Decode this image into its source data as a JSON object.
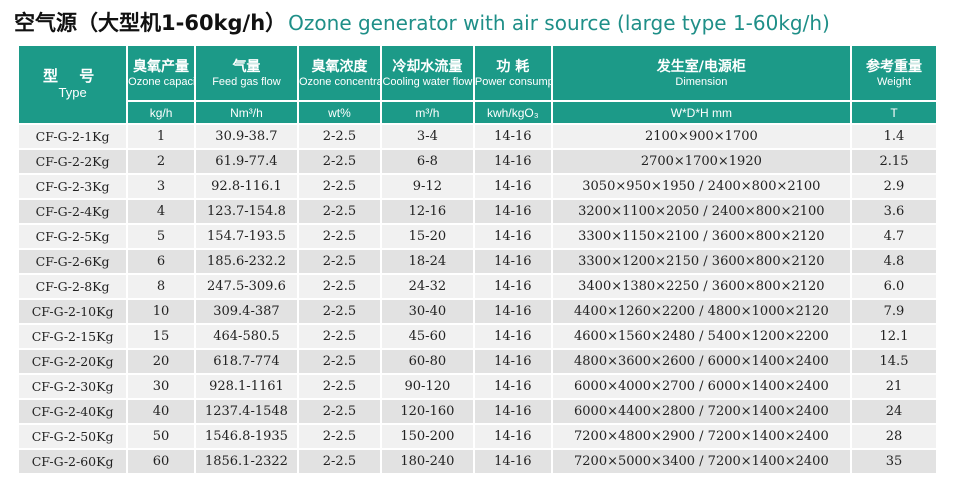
{
  "title": {
    "zh": "空气源（大型机1-60kg/h）",
    "en": "Ozone generator with air source (large type 1-60kg/h)"
  },
  "headers": {
    "model": {
      "zh": "型 号",
      "en": "Type"
    },
    "capacity": {
      "zh": "臭氧产量",
      "en": "Ozone capacity",
      "unit": "kg/h"
    },
    "feed_gas": {
      "zh": "气量",
      "en": "Feed gas flow",
      "unit": "Nm³/h"
    },
    "concentration": {
      "zh": "臭氧浓度",
      "en": "Ozone concentration",
      "unit": "wt%"
    },
    "cooling": {
      "zh": "冷却水流量",
      "en": "Cooling water flow",
      "unit": "m³/h"
    },
    "power": {
      "zh": "功 耗",
      "en": "Power consumption",
      "unit": "kwh/kgO₃"
    },
    "dimension": {
      "zh": "发生室/电源柜",
      "en": "Dimension",
      "unit": "W*D*H mm"
    },
    "weight": {
      "zh": "参考重量",
      "en": "Weight",
      "unit": "T"
    }
  },
  "rows": [
    {
      "model": "CF-G-2-1Kg",
      "capacity": "1",
      "feed_gas": "30.9-38.7",
      "concentration": "2-2.5",
      "cooling": "3-4",
      "power": "14-16",
      "dimension": "2100×900×1700",
      "weight": "1.4"
    },
    {
      "model": "CF-G-2-2Kg",
      "capacity": "2",
      "feed_gas": "61.9-77.4",
      "concentration": "2-2.5",
      "cooling": "6-8",
      "power": "14-16",
      "dimension": "2700×1700×1920",
      "weight": "2.15"
    },
    {
      "model": "CF-G-2-3Kg",
      "capacity": "3",
      "feed_gas": "92.8-116.1",
      "concentration": "2-2.5",
      "cooling": "9-12",
      "power": "14-16",
      "dimension": "3050×950×1950 / 2400×800×2100",
      "weight": "2.9"
    },
    {
      "model": "CF-G-2-4Kg",
      "capacity": "4",
      "feed_gas": "123.7-154.8",
      "concentration": "2-2.5",
      "cooling": "12-16",
      "power": "14-16",
      "dimension": "3200×1100×2050 / 2400×800×2100",
      "weight": "3.6"
    },
    {
      "model": "CF-G-2-5Kg",
      "capacity": "5",
      "feed_gas": "154.7-193.5",
      "concentration": "2-2.5",
      "cooling": "15-20",
      "power": "14-16",
      "dimension": "3300×1150×2100 / 3600×800×2120",
      "weight": "4.7"
    },
    {
      "model": "CF-G-2-6Kg",
      "capacity": "6",
      "feed_gas": "185.6-232.2",
      "concentration": "2-2.5",
      "cooling": "18-24",
      "power": "14-16",
      "dimension": "3300×1200×2150 / 3600×800×2120",
      "weight": "4.8"
    },
    {
      "model": "CF-G-2-8Kg",
      "capacity": "8",
      "feed_gas": "247.5-309.6",
      "concentration": "2-2.5",
      "cooling": "24-32",
      "power": "14-16",
      "dimension": "3400×1380×2250 / 3600×800×2120",
      "weight": "6.0"
    },
    {
      "model": "CF-G-2-10Kg",
      "capacity": "10",
      "feed_gas": "309.4-387",
      "concentration": "2-2.5",
      "cooling": "30-40",
      "power": "14-16",
      "dimension": "4400×1260×2200 / 4800×1000×2120",
      "weight": "7.9"
    },
    {
      "model": "CF-G-2-15Kg",
      "capacity": "15",
      "feed_gas": "464-580.5",
      "concentration": "2-2.5",
      "cooling": "45-60",
      "power": "14-16",
      "dimension": "4600×1560×2480 / 5400×1200×2200",
      "weight": "12.1"
    },
    {
      "model": "CF-G-2-20Kg",
      "capacity": "20",
      "feed_gas": "618.7-774",
      "concentration": "2-2.5",
      "cooling": "60-80",
      "power": "14-16",
      "dimension": "4800×3600×2600 / 6000×1400×2400",
      "weight": "14.5"
    },
    {
      "model": "CF-G-2-30Kg",
      "capacity": "30",
      "feed_gas": "928.1-1161",
      "concentration": "2-2.5",
      "cooling": "90-120",
      "power": "14-16",
      "dimension": "6000×4000×2700 / 6000×1400×2400",
      "weight": "21"
    },
    {
      "model": "CF-G-2-40Kg",
      "capacity": "40",
      "feed_gas": "1237.4-1548",
      "concentration": "2-2.5",
      "cooling": "120-160",
      "power": "14-16",
      "dimension": "6000×4400×2800 / 7200×1400×2400",
      "weight": "24"
    },
    {
      "model": "CF-G-2-50Kg",
      "capacity": "50",
      "feed_gas": "1546.8-1935",
      "concentration": "2-2.5",
      "cooling": "150-200",
      "power": "14-16",
      "dimension": "7200×4800×2900 / 7200×1400×2400",
      "weight": "28"
    },
    {
      "model": "CF-G-2-60Kg",
      "capacity": "60",
      "feed_gas": "1856.1-2322",
      "concentration": "2-2.5",
      "cooling": "180-240",
      "power": "14-16",
      "dimension": "7200×5000×3400 / 7200×1400×2400",
      "weight": "35"
    }
  ],
  "colors": {
    "header_bg": "#1c9a88",
    "title_en": "#1f8f88",
    "row_light": "#f1f1f1",
    "row_dark": "#e2e2e2"
  }
}
